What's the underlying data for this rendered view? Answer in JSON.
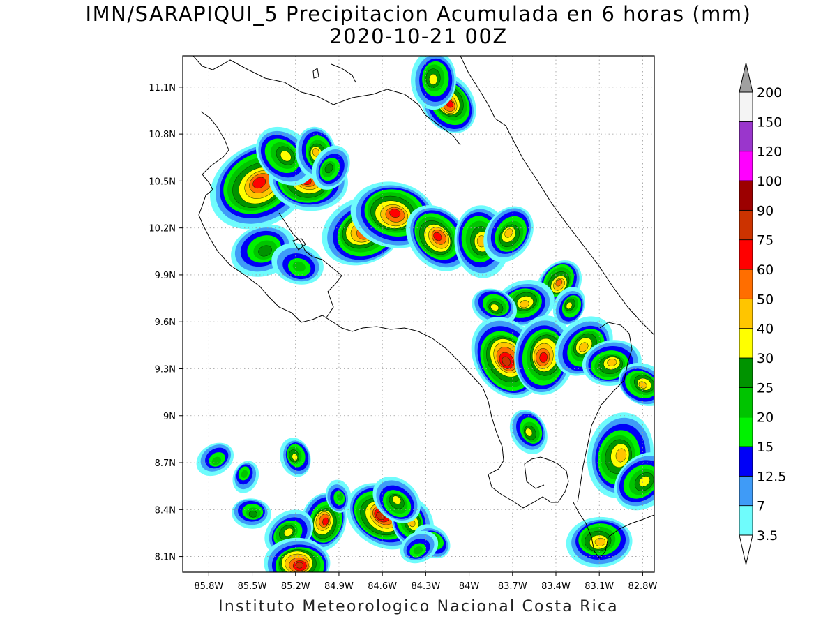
{
  "title": {
    "line1": "IMN/SARAPIQUI_5 Precipitacion Acumulada en 6 horas (mm)",
    "line2": "2020-10-21 00Z"
  },
  "footer": "Instituto Meteorologico Nacional Costa Rica",
  "map": {
    "lat_range": [
      8.0,
      11.3
    ],
    "lon_range": [
      -85.98,
      -82.72
    ],
    "lat_ticks": [
      {
        "value": 11.1,
        "label": "11.1N"
      },
      {
        "value": 10.8,
        "label": "10.8N"
      },
      {
        "value": 10.5,
        "label": "10.5N"
      },
      {
        "value": 10.2,
        "label": "10.2N"
      },
      {
        "value": 9.9,
        "label": "9.9N"
      },
      {
        "value": 9.6,
        "label": "9.6N"
      },
      {
        "value": 9.3,
        "label": "9.3N"
      },
      {
        "value": 9.0,
        "label": "9N"
      },
      {
        "value": 8.7,
        "label": "8.7N"
      },
      {
        "value": 8.4,
        "label": "8.4N"
      },
      {
        "value": 8.1,
        "label": "8.1N"
      }
    ],
    "lon_ticks": [
      {
        "value": -85.8,
        "label": "85.8W"
      },
      {
        "value": -85.5,
        "label": "85.5W"
      },
      {
        "value": -85.2,
        "label": "85.2W"
      },
      {
        "value": -84.9,
        "label": "84.9W"
      },
      {
        "value": -84.6,
        "label": "84.6W"
      },
      {
        "value": -84.3,
        "label": "84.3W"
      },
      {
        "value": -84.0,
        "label": "84W"
      },
      {
        "value": -83.7,
        "label": "83.7W"
      },
      {
        "value": -83.4,
        "label": "83.4W"
      },
      {
        "value": -83.1,
        "label": "83.1W"
      },
      {
        "value": -82.8,
        "label": "82.8W"
      }
    ],
    "gridlines": true
  },
  "colorbar": {
    "labels": [
      "200",
      "150",
      "120",
      "100",
      "90",
      "75",
      "60",
      "50",
      "40",
      "30",
      "25",
      "20",
      "15",
      "12.5",
      "7",
      "3.5"
    ],
    "colors_bottom_to_top": [
      "#6ffcfc",
      "#3f9bf7",
      "#0000f7",
      "#00f200",
      "#00c400",
      "#009300",
      "#ffff00",
      "#ffc500",
      "#ff6e00",
      "#ff0000",
      "#cc3300",
      "#9c0000",
      "#ff00ff",
      "#9a36cc",
      "#f4f4f4"
    ],
    "over_color": "#a0a0a0",
    "under_color": "#ffffff"
  },
  "precip_cells": [
    {
      "lon": -85.45,
      "lat": 10.48,
      "size": 1.6,
      "peak": 60
    },
    {
      "lon": -85.12,
      "lat": 10.5,
      "size": 1.2,
      "peak": 60
    },
    {
      "lon": -85.28,
      "lat": 10.66,
      "size": 1.0,
      "peak": 30
    },
    {
      "lon": -85.05,
      "lat": 10.68,
      "size": 0.8,
      "peak": 40
    },
    {
      "lon": -84.96,
      "lat": 10.58,
      "size": 0.7,
      "peak": 25
    },
    {
      "lon": -84.72,
      "lat": 10.18,
      "size": 1.3,
      "peak": 60
    },
    {
      "lon": -84.52,
      "lat": 10.29,
      "size": 1.3,
      "peak": 60
    },
    {
      "lon": -84.22,
      "lat": 10.14,
      "size": 1.1,
      "peak": 60
    },
    {
      "lon": -83.92,
      "lat": 10.12,
      "size": 1.1,
      "peak": 40
    },
    {
      "lon": -83.72,
      "lat": 10.16,
      "size": 0.9,
      "peak": 40
    },
    {
      "lon": -85.42,
      "lat": 10.06,
      "size": 1.0,
      "peak": 25
    },
    {
      "lon": -85.18,
      "lat": 9.96,
      "size": 0.8,
      "peak": 20
    },
    {
      "lon": -84.14,
      "lat": 11.0,
      "size": 1.0,
      "peak": 60
    },
    {
      "lon": -84.24,
      "lat": 11.15,
      "size": 0.9,
      "peak": 30
    },
    {
      "lon": -83.38,
      "lat": 9.85,
      "size": 0.8,
      "peak": 50
    },
    {
      "lon": -83.62,
      "lat": 9.72,
      "size": 0.9,
      "peak": 40
    },
    {
      "lon": -83.82,
      "lat": 9.7,
      "size": 0.7,
      "peak": 30
    },
    {
      "lon": -83.74,
      "lat": 9.36,
      "size": 1.3,
      "peak": 75
    },
    {
      "lon": -83.48,
      "lat": 9.38,
      "size": 1.2,
      "peak": 60
    },
    {
      "lon": -83.2,
      "lat": 9.44,
      "size": 1.0,
      "peak": 40
    },
    {
      "lon": -83.02,
      "lat": 9.33,
      "size": 0.9,
      "peak": 40
    },
    {
      "lon": -82.8,
      "lat": 9.2,
      "size": 0.8,
      "peak": 40
    },
    {
      "lon": -83.58,
      "lat": 8.9,
      "size": 0.7,
      "peak": 30
    },
    {
      "lon": -82.96,
      "lat": 8.74,
      "size": 1.3,
      "peak": 40
    },
    {
      "lon": -82.8,
      "lat": 8.58,
      "size": 1.0,
      "peak": 30
    },
    {
      "lon": -83.1,
      "lat": 8.2,
      "size": 1.0,
      "peak": 40
    },
    {
      "lon": -84.6,
      "lat": 8.36,
      "size": 1.2,
      "peak": 75
    },
    {
      "lon": -84.4,
      "lat": 8.32,
      "size": 0.8,
      "peak": 40
    },
    {
      "lon": -85.0,
      "lat": 8.32,
      "size": 0.9,
      "peak": 60
    },
    {
      "lon": -85.25,
      "lat": 8.25,
      "size": 0.8,
      "peak": 30
    },
    {
      "lon": -85.18,
      "lat": 8.05,
      "size": 1.0,
      "peak": 75
    },
    {
      "lon": -84.25,
      "lat": 8.2,
      "size": 0.6,
      "peak": 25
    },
    {
      "lon": -85.2,
      "lat": 8.74,
      "size": 0.6,
      "peak": 30
    },
    {
      "lon": -85.55,
      "lat": 8.62,
      "size": 0.5,
      "peak": 20
    },
    {
      "lon": -85.75,
      "lat": 8.72,
      "size": 0.6,
      "peak": 20
    },
    {
      "lon": -85.5,
      "lat": 8.38,
      "size": 0.6,
      "peak": 25
    },
    {
      "lon": -84.5,
      "lat": 8.45,
      "size": 0.8,
      "peak": 30
    },
    {
      "lon": -84.9,
      "lat": 8.48,
      "size": 0.5,
      "peak": 20
    },
    {
      "lon": -83.3,
      "lat": 9.7,
      "size": 0.6,
      "peak": 30
    },
    {
      "lon": -84.35,
      "lat": 8.15,
      "size": 0.6,
      "peak": 20
    }
  ]
}
